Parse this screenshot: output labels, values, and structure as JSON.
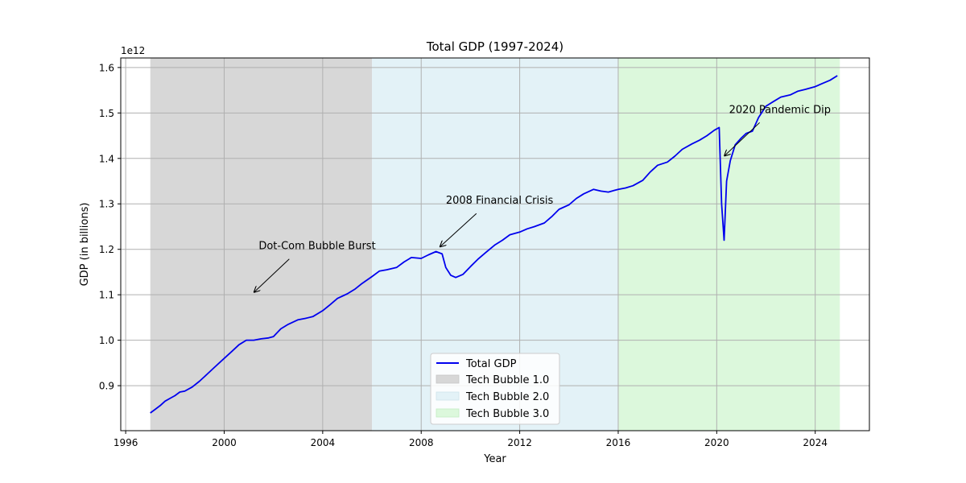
{
  "chart_data": {
    "type": "line",
    "title": "Total GDP (1997-2024)",
    "xlabel": "Year",
    "ylabel": "GDP (in billions)",
    "y_offset_label": "1e12",
    "xlim": [
      1995.8,
      2026.2
    ],
    "ylim": [
      0.801,
      1.621
    ],
    "grid": true,
    "legend_position": "lower center",
    "colors": {
      "line": "#0000ee",
      "bubble1": "#d7d7d7",
      "bubble2": "#e3f2f7",
      "bubble3": "#dcf8dc",
      "grid": "#b0b0b0"
    },
    "x_ticks": [
      {
        "value": 1996,
        "label": "1996"
      },
      {
        "value": 2000,
        "label": "2000"
      },
      {
        "value": 2004,
        "label": "2004"
      },
      {
        "value": 2008,
        "label": "2008"
      },
      {
        "value": 2012,
        "label": "2012"
      },
      {
        "value": 2016,
        "label": "2016"
      },
      {
        "value": 2020,
        "label": "2020"
      },
      {
        "value": 2024,
        "label": "2024"
      }
    ],
    "y_ticks": [
      {
        "value": 0.9,
        "label": "0.9"
      },
      {
        "value": 1.0,
        "label": "1.0"
      },
      {
        "value": 1.1,
        "label": "1.1"
      },
      {
        "value": 1.2,
        "label": "1.2"
      },
      {
        "value": 1.3,
        "label": "1.3"
      },
      {
        "value": 1.4,
        "label": "1.4"
      },
      {
        "value": 1.5,
        "label": "1.5"
      },
      {
        "value": 1.6,
        "label": "1.6"
      }
    ],
    "spans": [
      {
        "name": "Tech Bubble 1.0",
        "start": 1997.0,
        "end": 2006.0,
        "color": "#d7d7d7"
      },
      {
        "name": "Tech Bubble 2.0",
        "start": 2006.0,
        "end": 2016.0,
        "color": "#e3f2f7"
      },
      {
        "name": "Tech Bubble 3.0",
        "start": 2016.0,
        "end": 2025.0,
        "color": "#dcf8dc"
      }
    ],
    "series": [
      {
        "name": "Total GDP",
        "color": "#0000ee",
        "x": [
          1997.0,
          1997.2,
          1997.4,
          1997.6,
          1997.8,
          1998.0,
          1998.2,
          1998.4,
          1998.7,
          1999.0,
          1999.3,
          1999.6,
          2000.0,
          2000.3,
          2000.6,
          2000.9,
          2001.2,
          2001.5,
          2001.8,
          2002.0,
          2002.3,
          2002.6,
          2003.0,
          2003.3,
          2003.6,
          2004.0,
          2004.3,
          2004.6,
          2005.0,
          2005.3,
          2005.6,
          2006.0,
          2006.3,
          2006.6,
          2007.0,
          2007.3,
          2007.6,
          2008.0,
          2008.3,
          2008.6,
          2008.85,
          2009.0,
          2009.2,
          2009.4,
          2009.7,
          2010.0,
          2010.3,
          2010.6,
          2011.0,
          2011.3,
          2011.6,
          2012.0,
          2012.3,
          2012.6,
          2013.0,
          2013.3,
          2013.6,
          2014.0,
          2014.3,
          2014.6,
          2015.0,
          2015.3,
          2015.6,
          2016.0,
          2016.3,
          2016.6,
          2017.0,
          2017.3,
          2017.6,
          2018.0,
          2018.3,
          2018.6,
          2019.0,
          2019.3,
          2019.6,
          2019.9,
          2020.1,
          2020.2,
          2020.3,
          2020.4,
          2020.55,
          2020.75,
          2021.0,
          2021.2,
          2021.45,
          2021.7,
          2022.0,
          2022.3,
          2022.6,
          2023.0,
          2023.3,
          2023.6,
          2024.0,
          2024.3,
          2024.6,
          2024.9
        ],
        "y": [
          0.84,
          0.848,
          0.856,
          0.866,
          0.872,
          0.878,
          0.886,
          0.888,
          0.897,
          0.91,
          0.925,
          0.94,
          0.96,
          0.975,
          0.99,
          1.0,
          1.0,
          1.003,
          1.005,
          1.008,
          1.025,
          1.035,
          1.045,
          1.048,
          1.052,
          1.065,
          1.078,
          1.092,
          1.102,
          1.112,
          1.125,
          1.14,
          1.152,
          1.155,
          1.16,
          1.172,
          1.182,
          1.18,
          1.188,
          1.195,
          1.19,
          1.16,
          1.143,
          1.138,
          1.145,
          1.162,
          1.178,
          1.192,
          1.21,
          1.22,
          1.232,
          1.238,
          1.245,
          1.25,
          1.258,
          1.272,
          1.288,
          1.298,
          1.312,
          1.322,
          1.332,
          1.328,
          1.326,
          1.332,
          1.335,
          1.34,
          1.352,
          1.37,
          1.385,
          1.392,
          1.405,
          1.42,
          1.432,
          1.44,
          1.45,
          1.462,
          1.468,
          1.3,
          1.22,
          1.35,
          1.395,
          1.43,
          1.445,
          1.455,
          1.46,
          1.49,
          1.515,
          1.525,
          1.535,
          1.54,
          1.548,
          1.552,
          1.558,
          1.565,
          1.572,
          1.582
        ]
      }
    ],
    "annotations": [
      {
        "text": "Dot-Com Bubble Burst",
        "text_x": 2001.4,
        "text_y": 1.2,
        "point_x": 2001.2,
        "point_y": 1.105
      },
      {
        "text": "2008 Financial Crisis",
        "text_x": 2009.0,
        "text_y": 1.3,
        "point_x": 2008.75,
        "point_y": 1.205
      },
      {
        "text": "2020 Pandemic Dip",
        "text_x": 2020.5,
        "text_y": 1.5,
        "point_x": 2020.3,
        "point_y": 1.405
      }
    ],
    "legend": [
      {
        "label": "Total GDP",
        "kind": "line",
        "color": "#0000ee"
      },
      {
        "label": "Tech Bubble 1.0",
        "kind": "patch",
        "color": "#d7d7d7"
      },
      {
        "label": "Tech Bubble 2.0",
        "kind": "patch",
        "color": "#e3f2f7"
      },
      {
        "label": "Tech Bubble 3.0",
        "kind": "patch",
        "color": "#dcf8dc"
      }
    ]
  }
}
